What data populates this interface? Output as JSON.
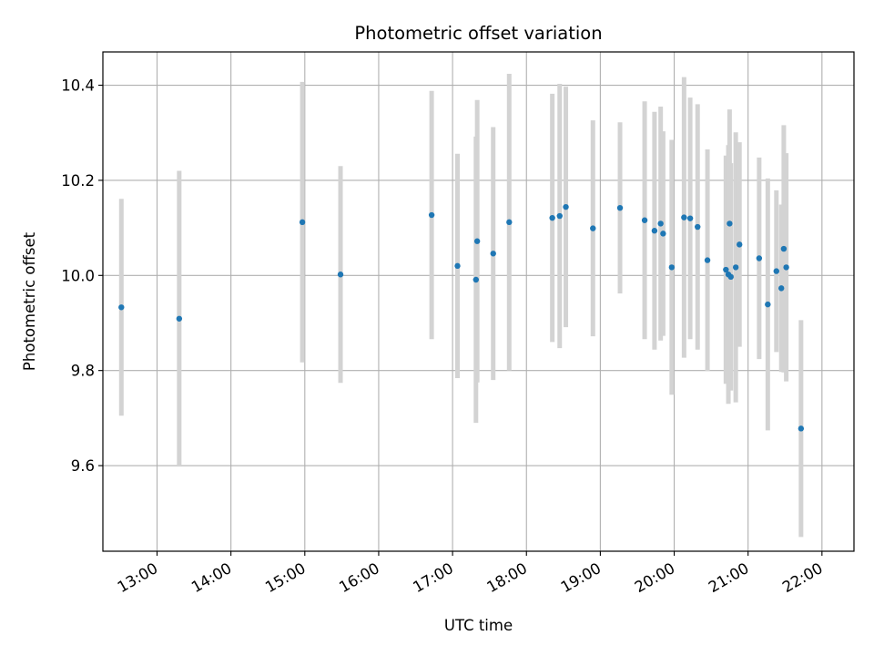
{
  "chart_data": {
    "type": "scatter",
    "title": "Photometric offset variation",
    "xlabel": "UTC time",
    "ylabel": "Photometric offset",
    "x_ticks": [
      "13:00",
      "14:00",
      "15:00",
      "16:00",
      "17:00",
      "18:00",
      "19:00",
      "20:00",
      "21:00",
      "22:00"
    ],
    "y_ticks": [
      "9.6",
      "9.8",
      "10.0",
      "10.2",
      "10.4"
    ],
    "xlim": [
      "12:16",
      "22:26"
    ],
    "ylim": [
      9.42,
      10.47
    ],
    "grid": true,
    "colors": {
      "point": "#1f77b4",
      "errorbar": "#d3d3d3",
      "grid": "#b0b0b0",
      "axes": "#000000"
    },
    "series": [
      {
        "points": [
          {
            "x": "12:31",
            "y": 9.933,
            "err": 0.228
          },
          {
            "x": "13:18",
            "y": 9.909,
            "err": 0.311
          },
          {
            "x": "14:58",
            "y": 10.112,
            "err": 0.295
          },
          {
            "x": "15:29",
            "y": 10.002,
            "err": 0.228
          },
          {
            "x": "16:43",
            "y": 10.127,
            "err": 0.261
          },
          {
            "x": "17:04",
            "y": 10.02,
            "err": 0.236
          },
          {
            "x": "17:19",
            "y": 9.991,
            "err": 0.301
          },
          {
            "x": "17:20",
            "y": 10.072,
            "err": 0.297
          },
          {
            "x": "17:33",
            "y": 10.046,
            "err": 0.266
          },
          {
            "x": "17:46",
            "y": 10.112,
            "err": 0.312
          },
          {
            "x": "18:21",
            "y": 10.121,
            "err": 0.261
          },
          {
            "x": "18:27",
            "y": 10.125,
            "err": 0.278
          },
          {
            "x": "18:32",
            "y": 10.144,
            "err": 0.253
          },
          {
            "x": "18:54",
            "y": 10.099,
            "err": 0.227
          },
          {
            "x": "19:16",
            "y": 10.142,
            "err": 0.18
          },
          {
            "x": "19:36",
            "y": 10.116,
            "err": 0.25
          },
          {
            "x": "19:44",
            "y": 10.094,
            "err": 0.25
          },
          {
            "x": "19:49",
            "y": 10.109,
            "err": 0.246
          },
          {
            "x": "19:51",
            "y": 10.088,
            "err": 0.215
          },
          {
            "x": "19:58",
            "y": 10.017,
            "err": 0.268
          },
          {
            "x": "20:08",
            "y": 10.122,
            "err": 0.295
          },
          {
            "x": "20:13",
            "y": 10.12,
            "err": 0.254
          },
          {
            "x": "20:19",
            "y": 10.102,
            "err": 0.258
          },
          {
            "x": "20:27",
            "y": 10.032,
            "err": 0.233
          },
          {
            "x": "20:42",
            "y": 10.012,
            "err": 0.24
          },
          {
            "x": "20:44",
            "y": 10.002,
            "err": 0.272
          },
          {
            "x": "20:45",
            "y": 10.109,
            "err": 0.24
          },
          {
            "x": "20:46",
            "y": 9.997,
            "err": 0.239
          },
          {
            "x": "20:50",
            "y": 10.017,
            "err": 0.284
          },
          {
            "x": "20:53",
            "y": 10.065,
            "err": 0.215
          },
          {
            "x": "21:09",
            "y": 10.036,
            "err": 0.212
          },
          {
            "x": "21:16",
            "y": 9.939,
            "err": 0.265
          },
          {
            "x": "21:23",
            "y": 10.009,
            "err": 0.17
          },
          {
            "x": "21:27",
            "y": 9.973,
            "err": 0.176
          },
          {
            "x": "21:29",
            "y": 10.056,
            "err": 0.26
          },
          {
            "x": "21:31",
            "y": 10.017,
            "err": 0.24
          },
          {
            "x": "21:43",
            "y": 9.678,
            "err": 0.228
          }
        ]
      }
    ]
  }
}
